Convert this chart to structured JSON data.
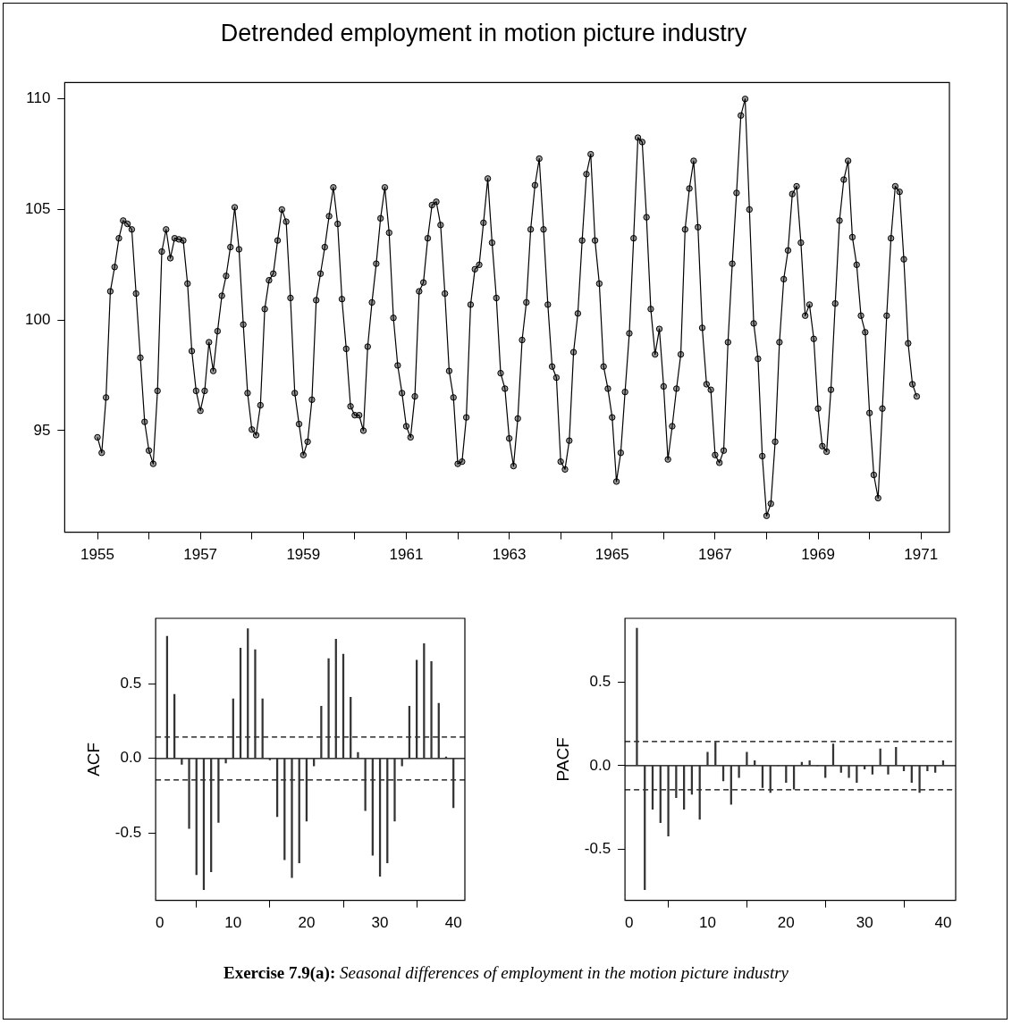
{
  "chart_data": [
    {
      "type": "line",
      "title": "Detrended employment in motion picture industry",
      "annotations": [
        "Exercise 7.9(a):",
        "Seasonal differences of employment in the motion picture industry"
      ],
      "x": [
        "1955-01",
        "1955-02",
        "1955-03",
        "1955-04",
        "1955-05",
        "1955-06",
        "1955-07",
        "1955-08",
        "1955-09",
        "1955-10",
        "1955-11",
        "1955-12",
        "1956-01",
        "1956-02",
        "1956-03",
        "1956-04",
        "1956-05",
        "1956-06",
        "1956-07",
        "1956-08",
        "1956-09",
        "1956-10",
        "1956-11",
        "1956-12",
        "1957-01",
        "1957-02",
        "1957-03",
        "1957-04",
        "1957-05",
        "1957-06",
        "1957-07",
        "1957-08",
        "1957-09",
        "1957-10",
        "1957-11",
        "1957-12",
        "1958-01",
        "1958-02",
        "1958-03",
        "1958-04",
        "1958-05",
        "1958-06",
        "1958-07",
        "1958-08",
        "1958-09",
        "1958-10",
        "1958-11",
        "1958-12",
        "1959-01",
        "1959-02",
        "1959-03",
        "1959-04",
        "1959-05",
        "1959-06",
        "1959-07",
        "1959-08",
        "1959-09",
        "1959-10",
        "1959-11",
        "1959-12",
        "1960-01",
        "1960-02",
        "1960-03",
        "1960-04",
        "1960-05",
        "1960-06",
        "1960-07",
        "1960-08",
        "1960-09",
        "1960-10",
        "1960-11",
        "1960-12",
        "1961-01",
        "1961-02",
        "1961-03",
        "1961-04",
        "1961-05",
        "1961-06",
        "1961-07",
        "1961-08",
        "1961-09",
        "1961-10",
        "1961-11",
        "1961-12",
        "1962-01",
        "1962-02",
        "1962-03",
        "1962-04",
        "1962-05",
        "1962-06",
        "1962-07",
        "1962-08",
        "1962-09",
        "1962-10",
        "1962-11",
        "1962-12",
        "1963-01",
        "1963-02",
        "1963-03",
        "1963-04",
        "1963-05",
        "1963-06",
        "1963-07",
        "1963-08",
        "1963-09",
        "1963-10",
        "1963-11",
        "1963-12",
        "1964-01",
        "1964-02",
        "1964-03",
        "1964-04",
        "1964-05",
        "1964-06",
        "1964-07",
        "1964-08",
        "1964-09",
        "1964-10",
        "1964-11",
        "1964-12",
        "1965-01",
        "1965-02",
        "1965-03",
        "1965-04",
        "1965-05",
        "1965-06",
        "1965-07",
        "1965-08",
        "1965-09",
        "1965-10",
        "1965-11",
        "1965-12",
        "1966-01",
        "1966-02",
        "1966-03",
        "1966-04",
        "1966-05",
        "1966-06",
        "1966-07",
        "1966-08",
        "1966-09",
        "1966-10",
        "1966-11",
        "1966-12",
        "1967-01",
        "1967-02",
        "1967-03",
        "1967-04",
        "1967-05",
        "1967-06",
        "1967-07",
        "1967-08",
        "1967-09",
        "1967-10",
        "1967-11",
        "1967-12",
        "1968-01",
        "1968-02",
        "1968-03",
        "1968-04",
        "1968-05",
        "1968-06",
        "1968-07",
        "1968-08",
        "1968-09",
        "1968-10",
        "1968-11",
        "1968-12",
        "1969-01",
        "1969-02",
        "1969-03",
        "1969-04",
        "1969-05",
        "1969-06",
        "1969-07",
        "1969-08",
        "1969-09",
        "1969-10",
        "1969-11",
        "1969-12",
        "1970-01",
        "1970-02",
        "1970-03",
        "1970-04",
        "1970-05",
        "1970-06",
        "1970-07",
        "1970-08",
        "1970-09",
        "1970-10",
        "1970-11",
        "1970-12"
      ],
      "values": [
        94.7,
        94.0,
        96.5,
        101.3,
        102.4,
        103.7,
        104.5,
        104.35,
        104.1,
        101.2,
        98.3,
        95.4,
        94.1,
        93.5,
        96.8,
        103.1,
        104.1,
        102.8,
        103.7,
        103.65,
        103.6,
        101.65,
        98.6,
        96.8,
        95.9,
        96.8,
        99.0,
        97.7,
        99.5,
        101.1,
        102.0,
        103.3,
        105.1,
        103.2,
        99.8,
        96.7,
        95.05,
        94.8,
        96.15,
        100.5,
        101.8,
        102.1,
        103.6,
        105.0,
        104.45,
        101.0,
        96.7,
        95.3,
        93.9,
        94.5,
        96.4,
        100.9,
        102.1,
        103.3,
        104.7,
        106.0,
        104.35,
        100.95,
        98.7,
        96.1,
        95.7,
        95.7,
        95.0,
        98.8,
        100.8,
        102.55,
        104.6,
        106.0,
        103.95,
        100.1,
        97.95,
        96.7,
        95.2,
        94.7,
        96.55,
        101.3,
        101.7,
        103.7,
        105.2,
        105.35,
        104.3,
        101.2,
        97.7,
        96.5,
        93.5,
        93.6,
        95.6,
        100.7,
        102.3,
        102.5,
        104.4,
        106.4,
        103.5,
        101.0,
        97.6,
        96.9,
        94.65,
        93.4,
        95.55,
        99.1,
        100.8,
        104.1,
        106.1,
        107.3,
        104.1,
        100.7,
        97.9,
        97.4,
        93.6,
        93.25,
        94.55,
        98.55,
        100.3,
        103.6,
        106.6,
        107.5,
        103.6,
        101.65,
        97.9,
        96.9,
        95.6,
        92.7,
        94.0,
        96.75,
        99.4,
        103.7,
        108.25,
        108.05,
        104.65,
        100.5,
        98.45,
        99.6,
        97.0,
        93.7,
        95.2,
        96.9,
        98.45,
        104.1,
        105.95,
        107.2,
        104.2,
        99.65,
        97.1,
        96.85,
        93.9,
        93.55,
        94.1,
        99.0,
        102.55,
        105.75,
        109.25,
        110.0,
        105.0,
        99.85,
        98.25,
        93.85,
        91.15,
        91.7,
        94.5,
        99.0,
        101.85,
        103.15,
        105.7,
        106.05,
        103.5,
        100.2,
        100.7,
        99.15,
        96.0,
        94.3,
        94.05,
        96.85,
        100.75,
        104.5,
        106.35,
        107.2,
        103.75,
        102.5,
        100.2,
        99.45,
        95.8,
        93.0,
        91.95,
        96.0,
        100.2,
        103.7,
        106.05,
        105.8,
        102.75,
        98.95,
        97.1,
        96.55
      ],
      "color": "#000000",
      "marker": "circle",
      "xlim": [
        "1954-05-12",
        "1971-07-20"
      ],
      "xticks": [
        "1955",
        {
          "value": "1956",
          "label": null
        },
        "1957",
        {
          "value": "1958",
          "label": null
        },
        "1959",
        {
          "value": "1960",
          "label": null
        },
        "1961",
        {
          "value": "1962",
          "label": null
        },
        "1963",
        {
          "value": "1964",
          "label": null
        },
        "1965",
        {
          "value": "1966",
          "label": null
        },
        "1967",
        {
          "value": "1968",
          "label": null
        },
        "1969",
        {
          "value": "1970",
          "label": null
        },
        "1971"
      ],
      "ylim": [
        90.41,
        110.74
      ],
      "yticks": [
        95,
        100,
        105,
        110
      ]
    },
    {
      "type": "bar",
      "ylabel": "ACF",
      "color": "#333333",
      "x": [
        1,
        2,
        3,
        4,
        5,
        6,
        7,
        8,
        9,
        10,
        11,
        12,
        13,
        14,
        15,
        16,
        17,
        18,
        19,
        20,
        21,
        22,
        23,
        24,
        25,
        26,
        27,
        28,
        29,
        30,
        31,
        32,
        33,
        34,
        35,
        36,
        37,
        38,
        39,
        40
      ],
      "values": [
        0.82,
        0.43,
        -0.04,
        -0.47,
        -0.78,
        -0.88,
        -0.76,
        -0.43,
        -0.03,
        0.4,
        0.74,
        0.87,
        0.73,
        0.4,
        -0.01,
        -0.39,
        -0.68,
        -0.8,
        -0.7,
        -0.42,
        -0.05,
        0.35,
        0.67,
        0.8,
        0.7,
        0.41,
        0.04,
        -0.35,
        -0.65,
        -0.79,
        -0.7,
        -0.42,
        -0.05,
        0.35,
        0.66,
        0.77,
        0.65,
        0.37,
        0.01,
        -0.33
      ],
      "xlim": [
        -0.56,
        41.56
      ],
      "xticks": [
        0,
        10,
        20,
        30,
        40
      ],
      "ylim": [
        -0.952,
        0.94
      ],
      "yticks": [
        {
          "value": -0.5,
          "label": "-0.5"
        },
        {
          "value": 0,
          "label": "0.0"
        },
        {
          "value": 0.5,
          "label": "0.5"
        }
      ],
      "ref_lines": [
        {
          "axis": "y",
          "value": 0,
          "color": "#000000",
          "line_style": "solid"
        },
        {
          "axis": "y",
          "value": 0.144,
          "color": "#000000",
          "line_style": "dashed"
        },
        {
          "axis": "y",
          "value": -0.144,
          "color": "#000000",
          "line_style": "dashed"
        }
      ]
    },
    {
      "type": "bar",
      "ylabel": "PACF",
      "color": "#333333",
      "x": [
        1,
        2,
        3,
        4,
        5,
        6,
        7,
        8,
        9,
        10,
        11,
        12,
        13,
        14,
        15,
        16,
        17,
        18,
        19,
        20,
        21,
        22,
        23,
        24,
        25,
        26,
        27,
        28,
        29,
        30,
        31,
        32,
        33,
        34,
        35,
        36,
        37,
        38,
        39,
        40
      ],
      "values": [
        0.82,
        -0.74,
        -0.26,
        -0.34,
        -0.42,
        -0.19,
        -0.26,
        -0.17,
        -0.32,
        0.08,
        0.14,
        -0.09,
        -0.23,
        -0.07,
        0.08,
        0.03,
        -0.13,
        -0.16,
        0.0,
        -0.1,
        -0.14,
        0.02,
        0.03,
        0.0,
        -0.07,
        0.13,
        -0.04,
        -0.07,
        -0.1,
        -0.02,
        -0.05,
        0.1,
        -0.05,
        0.11,
        -0.03,
        -0.1,
        -0.16,
        -0.03,
        -0.04,
        0.03
      ],
      "xlim": [
        -0.52,
        41.6
      ],
      "xticks": [
        0,
        10,
        20,
        30,
        40
      ],
      "ylim": [
        -0.803,
        0.879
      ],
      "yticks": [
        {
          "value": -0.5,
          "label": "-0.5"
        },
        {
          "value": 0,
          "label": "0.0"
        },
        {
          "value": 0.5,
          "label": "0.5"
        }
      ],
      "ref_lines": [
        {
          "axis": "y",
          "value": 0,
          "color": "#000000",
          "line_style": "solid"
        },
        {
          "axis": "y",
          "value": 0.144,
          "color": "#000000",
          "line_style": "dashed"
        },
        {
          "axis": "y",
          "value": -0.144,
          "color": "#000000",
          "line_style": "dashed"
        }
      ]
    }
  ]
}
